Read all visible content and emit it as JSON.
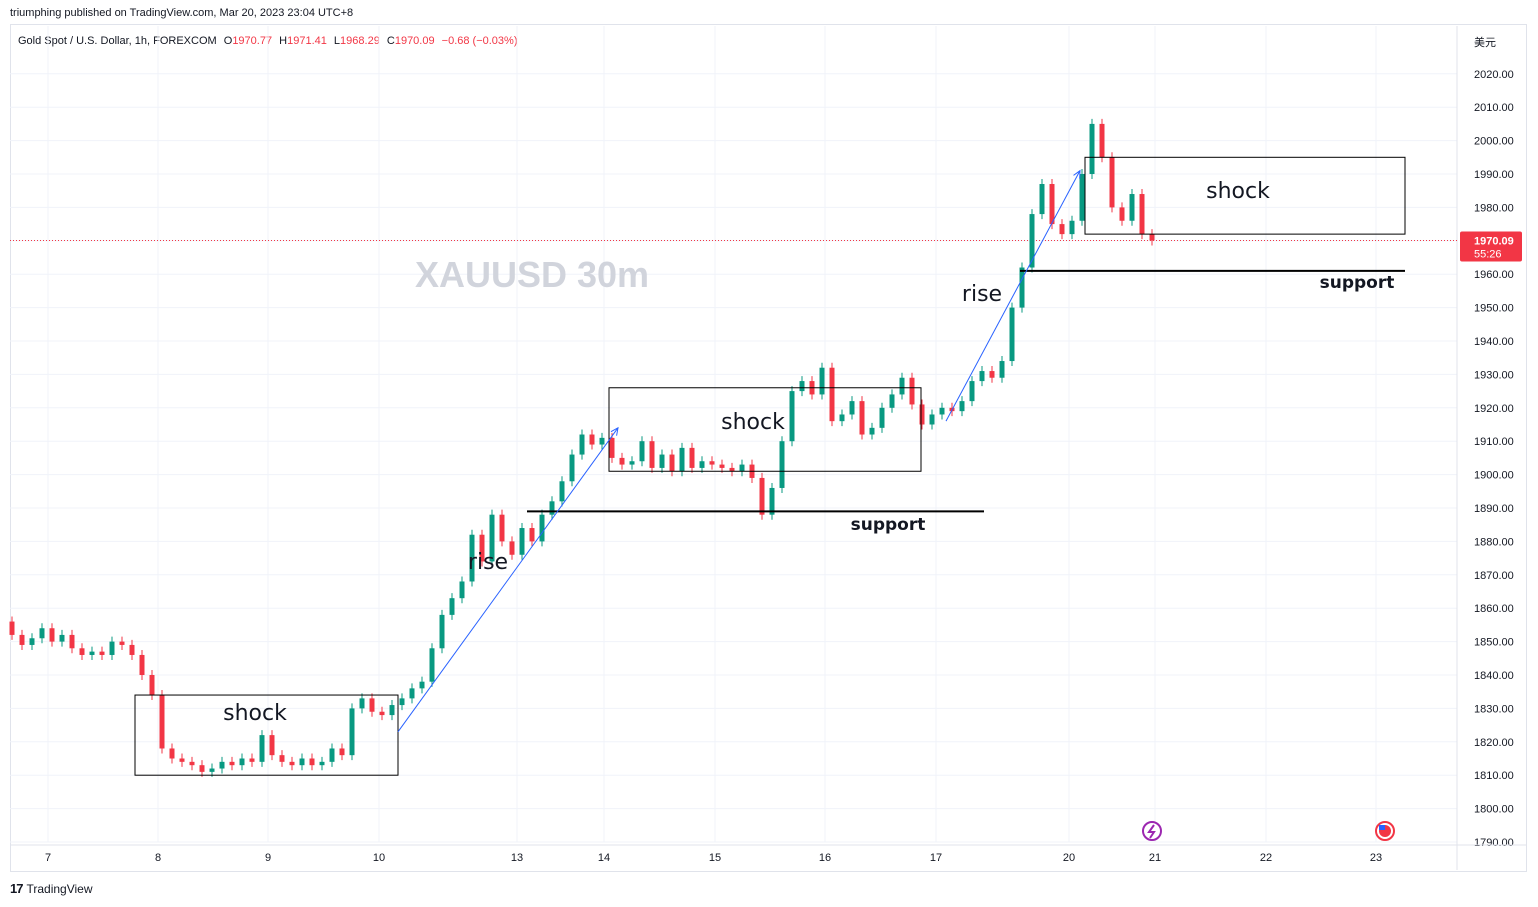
{
  "header": {
    "published": "triumphing published on TradingView.com, Mar 20, 2023 23:04 UTC+8"
  },
  "legend": {
    "symbol": "Gold Spot / U.S. Dollar, 1h, FOREXCOM",
    "o_label": "O",
    "o_value": "1970.77",
    "h_label": "H",
    "h_value": "1971.41",
    "l_label": "L",
    "l_value": "1968.29",
    "c_label": "C",
    "c_value": "1970.09",
    "change": "−0.68 (−0.03%)"
  },
  "currency_label": "美元",
  "footer": {
    "brand": "TradingView",
    "logo": "17"
  },
  "colors": {
    "up": "#089981",
    "down": "#f23645",
    "trend": "#2962ff",
    "price_tag": "#f23645",
    "watermark": "#d1d4dc"
  },
  "chart_data": {
    "type": "candlestick",
    "watermark": "XAUUSD  30m",
    "ylim": [
      1787,
      2024
    ],
    "y_ticks": [
      1790,
      1800,
      1810,
      1820,
      1830,
      1840,
      1850,
      1860,
      1870,
      1880,
      1890,
      1900,
      1910,
      1920,
      1930,
      1940,
      1950,
      1960,
      1970,
      1980,
      1990,
      2000,
      2010,
      2020
    ],
    "x_ticks": [
      "7",
      "8",
      "9",
      "10",
      "13",
      "14",
      "15",
      "16",
      "17",
      "20",
      "21",
      "22",
      "23"
    ],
    "last_price": {
      "value": "1970.09",
      "countdown": "55:26"
    },
    "candles": [
      {
        "x": "7",
        "o": 1856,
        "c": 1852
      },
      {
        "x": "7",
        "o": 1852,
        "c": 1849
      },
      {
        "x": "7",
        "o": 1849,
        "c": 1851
      },
      {
        "x": "7",
        "o": 1851,
        "c": 1854
      },
      {
        "x": "7",
        "o": 1854,
        "c": 1850
      },
      {
        "x": "7",
        "o": 1850,
        "c": 1852
      },
      {
        "x": "7",
        "o": 1852,
        "c": 1848
      },
      {
        "x": "7",
        "o": 1848,
        "c": 1846
      },
      {
        "x": "7",
        "o": 1846,
        "c": 1847
      },
      {
        "x": "7",
        "o": 1847,
        "c": 1846
      },
      {
        "x": "7",
        "o": 1846,
        "c": 1850
      },
      {
        "x": "7",
        "o": 1850,
        "c": 1849
      },
      {
        "x": "8",
        "o": 1849,
        "c": 1846
      },
      {
        "x": "8",
        "o": 1846,
        "c": 1840
      },
      {
        "x": "8",
        "o": 1840,
        "c": 1834
      },
      {
        "x": "8",
        "o": 1834,
        "c": 1818
      },
      {
        "x": "8",
        "o": 1818,
        "c": 1815
      },
      {
        "x": "8",
        "o": 1815,
        "c": 1814
      },
      {
        "x": "8",
        "o": 1814,
        "c": 1813
      },
      {
        "x": "8",
        "o": 1813,
        "c": 1811
      },
      {
        "x": "8",
        "o": 1811,
        "c": 1812
      },
      {
        "x": "8",
        "o": 1812,
        "c": 1814
      },
      {
        "x": "9",
        "o": 1814,
        "c": 1813
      },
      {
        "x": "9",
        "o": 1813,
        "c": 1815
      },
      {
        "x": "9",
        "o": 1815,
        "c": 1814
      },
      {
        "x": "9",
        "o": 1814,
        "c": 1822
      },
      {
        "x": "9",
        "o": 1822,
        "c": 1816
      },
      {
        "x": "9",
        "o": 1816,
        "c": 1814
      },
      {
        "x": "9",
        "o": 1814,
        "c": 1813
      },
      {
        "x": "9",
        "o": 1813,
        "c": 1815
      },
      {
        "x": "9",
        "o": 1815,
        "c": 1813
      },
      {
        "x": "9",
        "o": 1813,
        "c": 1814
      },
      {
        "x": "10",
        "o": 1814,
        "c": 1818
      },
      {
        "x": "10",
        "o": 1818,
        "c": 1816
      },
      {
        "x": "10",
        "o": 1816,
        "c": 1830
      },
      {
        "x": "10",
        "o": 1830,
        "c": 1833
      },
      {
        "x": "10",
        "o": 1833,
        "c": 1829
      },
      {
        "x": "10",
        "o": 1829,
        "c": 1828
      },
      {
        "x": "10",
        "o": 1828,
        "c": 1831
      },
      {
        "x": "10",
        "o": 1831,
        "c": 1833
      },
      {
        "x": "10",
        "o": 1833,
        "c": 1836
      },
      {
        "x": "10",
        "o": 1836,
        "c": 1838
      },
      {
        "x": "10",
        "o": 1838,
        "c": 1848
      },
      {
        "x": "13",
        "o": 1848,
        "c": 1858
      },
      {
        "x": "13",
        "o": 1858,
        "c": 1863
      },
      {
        "x": "13",
        "o": 1863,
        "c": 1868
      },
      {
        "x": "13",
        "o": 1868,
        "c": 1882
      },
      {
        "x": "13",
        "o": 1882,
        "c": 1874
      },
      {
        "x": "13",
        "o": 1874,
        "c": 1888
      },
      {
        "x": "13",
        "o": 1888,
        "c": 1880
      },
      {
        "x": "13",
        "o": 1880,
        "c": 1876
      },
      {
        "x": "13",
        "o": 1876,
        "c": 1884
      },
      {
        "x": "13",
        "o": 1884,
        "c": 1880
      },
      {
        "x": "13",
        "o": 1880,
        "c": 1888
      },
      {
        "x": "13",
        "o": 1888,
        "c": 1892
      },
      {
        "x": "14",
        "o": 1892,
        "c": 1898
      },
      {
        "x": "14",
        "o": 1898,
        "c": 1906
      },
      {
        "x": "14",
        "o": 1906,
        "c": 1912
      },
      {
        "x": "14",
        "o": 1912,
        "c": 1909
      },
      {
        "x": "14",
        "o": 1909,
        "c": 1911
      },
      {
        "x": "14",
        "o": 1911,
        "c": 1905
      },
      {
        "x": "14",
        "o": 1905,
        "c": 1903
      },
      {
        "x": "14",
        "o": 1903,
        "c": 1904
      },
      {
        "x": "14",
        "o": 1904,
        "c": 1910
      },
      {
        "x": "14",
        "o": 1910,
        "c": 1902
      },
      {
        "x": "15",
        "o": 1902,
        "c": 1906
      },
      {
        "x": "15",
        "o": 1906,
        "c": 1901
      },
      {
        "x": "15",
        "o": 1901,
        "c": 1908
      },
      {
        "x": "15",
        "o": 1908,
        "c": 1902
      },
      {
        "x": "15",
        "o": 1902,
        "c": 1904
      },
      {
        "x": "15",
        "o": 1904,
        "c": 1903
      },
      {
        "x": "15",
        "o": 1903,
        "c": 1902
      },
      {
        "x": "15",
        "o": 1902,
        "c": 1901
      },
      {
        "x": "15",
        "o": 1901,
        "c": 1903
      },
      {
        "x": "15",
        "o": 1903,
        "c": 1899
      },
      {
        "x": "15",
        "o": 1899,
        "c": 1888
      },
      {
        "x": "15",
        "o": 1888,
        "c": 1896
      },
      {
        "x": "15",
        "o": 1896,
        "c": 1910
      },
      {
        "x": "16",
        "o": 1910,
        "c": 1925
      },
      {
        "x": "16",
        "o": 1925,
        "c": 1928
      },
      {
        "x": "16",
        "o": 1928,
        "c": 1924
      },
      {
        "x": "16",
        "o": 1924,
        "c": 1932
      },
      {
        "x": "16",
        "o": 1932,
        "c": 1916
      },
      {
        "x": "16",
        "o": 1916,
        "c": 1918
      },
      {
        "x": "16",
        "o": 1918,
        "c": 1922
      },
      {
        "x": "16",
        "o": 1922,
        "c": 1912
      },
      {
        "x": "16",
        "o": 1912,
        "c": 1914
      },
      {
        "x": "16",
        "o": 1914,
        "c": 1920
      },
      {
        "x": "16",
        "o": 1920,
        "c": 1924
      },
      {
        "x": "17",
        "o": 1924,
        "c": 1929
      },
      {
        "x": "17",
        "o": 1929,
        "c": 1921
      },
      {
        "x": "17",
        "o": 1921,
        "c": 1915
      },
      {
        "x": "17",
        "o": 1915,
        "c": 1918
      },
      {
        "x": "17",
        "o": 1918,
        "c": 1920
      },
      {
        "x": "17",
        "o": 1920,
        "c": 1919
      },
      {
        "x": "17",
        "o": 1919,
        "c": 1922
      },
      {
        "x": "17",
        "o": 1922,
        "c": 1928
      },
      {
        "x": "17",
        "o": 1928,
        "c": 1931
      },
      {
        "x": "17",
        "o": 1931,
        "c": 1929
      },
      {
        "x": "17",
        "o": 1929,
        "c": 1934
      },
      {
        "x": "17",
        "o": 1934,
        "c": 1950
      },
      {
        "x": "20",
        "o": 1950,
        "c": 1962
      },
      {
        "x": "20",
        "o": 1962,
        "c": 1978
      },
      {
        "x": "20",
        "o": 1978,
        "c": 1987
      },
      {
        "x": "20",
        "o": 1987,
        "c": 1975
      },
      {
        "x": "20",
        "o": 1975,
        "c": 1972
      },
      {
        "x": "20",
        "o": 1972,
        "c": 1976
      },
      {
        "x": "20",
        "o": 1976,
        "c": 1990
      },
      {
        "x": "20",
        "o": 1990,
        "c": 2005
      },
      {
        "x": "20",
        "o": 2005,
        "c": 1995
      },
      {
        "x": "20",
        "o": 1995,
        "c": 1980
      },
      {
        "x": "20",
        "o": 1980,
        "c": 1976
      },
      {
        "x": "20",
        "o": 1976,
        "c": 1984
      },
      {
        "x": "21",
        "o": 1984,
        "c": 1972
      },
      {
        "x": "21",
        "o": 1972,
        "c": 1970.09
      }
    ],
    "annotations": [
      {
        "text": "shock",
        "kind": "box",
        "x_from": "8",
        "x_to": "10",
        "y_from": 1810,
        "y_to": 1834
      },
      {
        "text": "shock",
        "kind": "box",
        "x_from": "14",
        "x_to": "17",
        "y_from": 1901,
        "y_to": 1926
      },
      {
        "text": "shock",
        "kind": "box",
        "x_from": "20",
        "x_to": "23",
        "y_from": 1972,
        "y_to": 1995
      },
      {
        "text": "rise",
        "kind": "label"
      },
      {
        "text": "rise",
        "kind": "label"
      },
      {
        "text": "support",
        "kind": "line",
        "value": 1889
      },
      {
        "text": "support",
        "kind": "line",
        "value": 1961
      }
    ],
    "trend_lines": [
      {
        "from": [
          "10",
          1823
        ],
        "to": [
          "14",
          1914
        ]
      },
      {
        "from": [
          "17",
          1916
        ],
        "to": [
          "20",
          1991
        ]
      }
    ],
    "grid": true
  }
}
